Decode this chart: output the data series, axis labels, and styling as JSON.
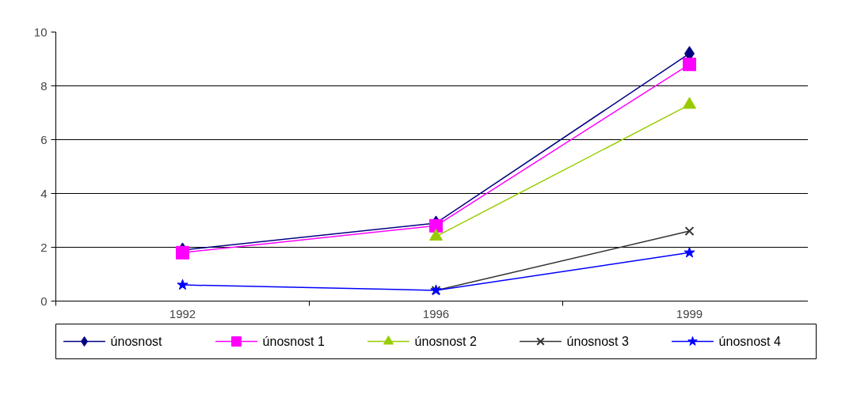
{
  "chart_data": {
    "type": "line",
    "categories": [
      "1992",
      "1996",
      "1999"
    ],
    "series": [
      {
        "name": "únosnost",
        "color": "#000080",
        "marker": "diamond",
        "values": [
          1.9,
          2.9,
          9.2
        ]
      },
      {
        "name": "únosnost 1",
        "color": "#ff00ff",
        "marker": "square",
        "values": [
          1.8,
          2.8,
          8.8
        ]
      },
      {
        "name": "únosnost 2",
        "color": "#99cc00",
        "marker": "triangle",
        "values": [
          null,
          2.4,
          7.3
        ]
      },
      {
        "name": "únosnost 3",
        "color": "#333333",
        "marker": "cross",
        "values": [
          null,
          0.4,
          2.6
        ]
      },
      {
        "name": "únosnost 4",
        "color": "#0000ff",
        "marker": "star",
        "values": [
          0.6,
          0.4,
          1.8
        ]
      }
    ],
    "ylim": [
      0,
      10
    ],
    "yticks": [
      0,
      2,
      4,
      6,
      8,
      10
    ],
    "grid": "y",
    "legend": "bottom",
    "line_style": "solid"
  }
}
